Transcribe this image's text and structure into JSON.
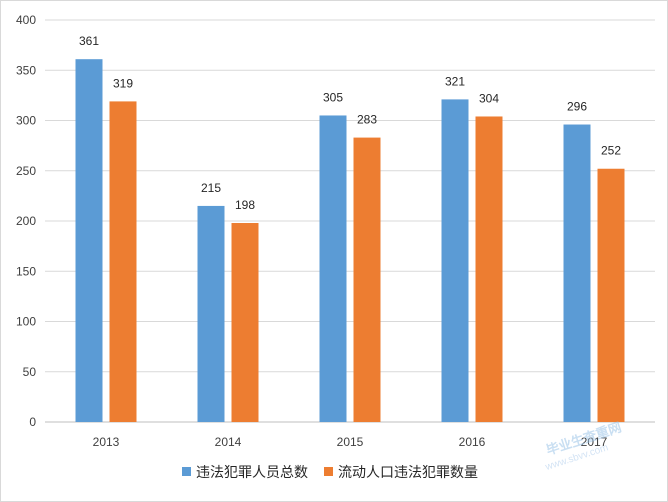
{
  "chart_data": {
    "type": "bar",
    "title": "",
    "xlabel": "",
    "ylabel": "",
    "categories": [
      "2013",
      "2014",
      "2015",
      "2016",
      "2017"
    ],
    "series": [
      {
        "name": "违法犯罪人员总数",
        "values": [
          361,
          215,
          305,
          321,
          296
        ],
        "color": "#5b9bd5"
      },
      {
        "name": "流动人口违法犯罪数量",
        "values": [
          319,
          198,
          283,
          304,
          252
        ],
        "color": "#ed7d31"
      }
    ],
    "ylim": [
      0,
      400
    ],
    "yticks": [
      0,
      50,
      100,
      150,
      200,
      250,
      300,
      350,
      400
    ],
    "grid": true,
    "legend_position": "bottom"
  },
  "watermark": {
    "line1": "毕业生查重网",
    "line2": "www.sbvv.com"
  }
}
